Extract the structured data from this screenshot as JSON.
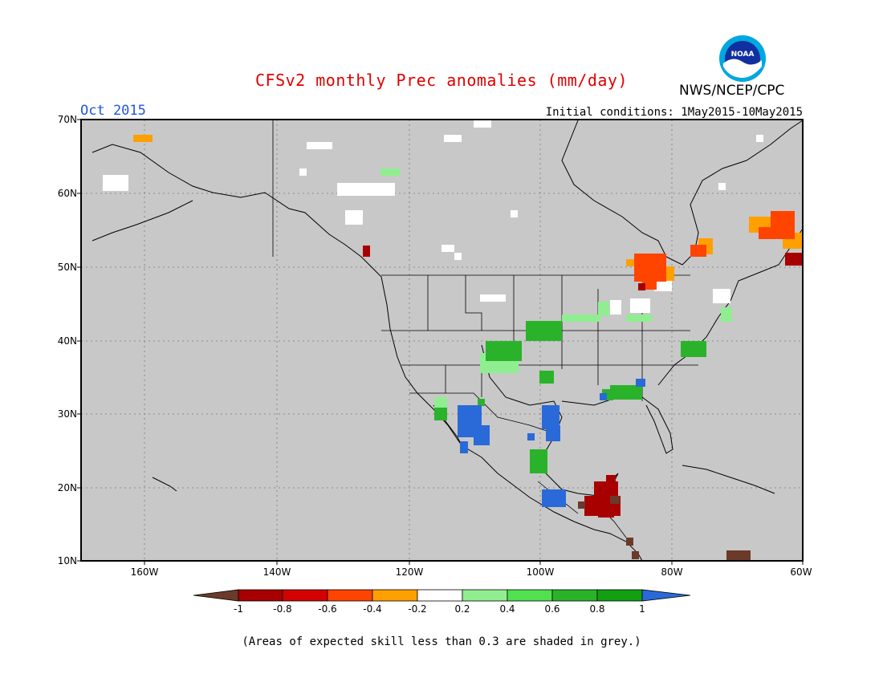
{
  "header": {
    "title": "CFSv2 monthly Prec anomalies (mm/day)",
    "month": "Oct 2015",
    "initial_conditions": "Initial conditions: 1May2015-10May2015",
    "agency": "NWS/NCEP/CPC",
    "logo_text": "NOAA"
  },
  "map": {
    "lat_labels": [
      "70N",
      "60N",
      "50N",
      "40N",
      "30N",
      "20N",
      "10N"
    ],
    "lon_labels": [
      "160W",
      "140W",
      "120W",
      "100W",
      "80W",
      "60W"
    ],
    "background_color": "#c8c8c8"
  },
  "colorbar": {
    "labels": [
      "-1",
      "-0.8",
      "-0.6",
      "-0.4",
      "-0.2",
      "0.2",
      "0.4",
      "0.6",
      "0.8",
      "1"
    ],
    "colors": [
      "#6b3a2a",
      "#a80000",
      "#d40000",
      "#ff4400",
      "#ff9f00",
      "#ffffff",
      "#90ee90",
      "#50e050",
      "#2ab32a",
      "#12a012",
      "#2a6ad8"
    ]
  },
  "footnote": "(Areas of expected skill less than 0.3 are shaded in grey.)"
}
